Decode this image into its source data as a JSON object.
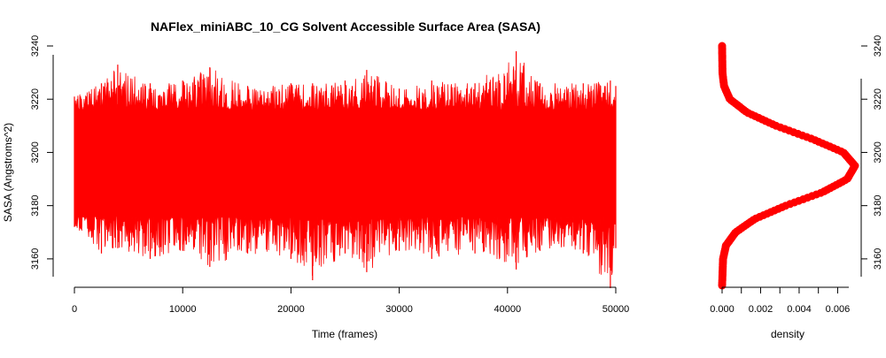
{
  "chart_data": [
    {
      "type": "line",
      "title": "NAFlex_miniABC_10_CG Solvent Accessible Surface Area (SASA)",
      "xlabel": "Time (frames)",
      "ylabel": "SASA (Angstroms^2)",
      "xlim": [
        0,
        50000
      ],
      "ylim": [
        3148,
        3240
      ],
      "x_ticks": [
        0,
        10000,
        20000,
        30000,
        40000,
        50000
      ],
      "x_tick_labels": [
        "0",
        "10000",
        "20000",
        "30000",
        "40000",
        "50000"
      ],
      "y_ticks": [
        3160,
        3180,
        3200,
        3220,
        3240
      ],
      "y_tick_labels": [
        "3160",
        "3180",
        "3200",
        "3220",
        "3240"
      ],
      "grid": false,
      "series": [
        {
          "color": "#ff0000",
          "x": [
            0,
            2500,
            4000,
            7000,
            10000,
            12500,
            16000,
            20000,
            22000,
            25000,
            27000,
            30000,
            33000,
            37000,
            40800,
            43000,
            47000,
            49500,
            50000
          ],
          "y_max": [
            3221,
            3226,
            3233,
            3226,
            3227,
            3232,
            3225,
            3226,
            3226,
            3227,
            3231,
            3224,
            3227,
            3226,
            3238,
            3226,
            3226,
            3227,
            3225
          ],
          "y_min": [
            3172,
            3162,
            3164,
            3160,
            3163,
            3157,
            3162,
            3160,
            3152,
            3162,
            3155,
            3163,
            3160,
            3162,
            3156,
            3163,
            3162,
            3149,
            3164
          ],
          "y_center": [
            3196,
            3196,
            3196,
            3196,
            3196,
            3196,
            3196,
            3196,
            3196,
            3196,
            3196,
            3196,
            3196,
            3196,
            3196,
            3196,
            3196,
            3196,
            3196
          ]
        }
      ]
    },
    {
      "type": "line",
      "xlabel": "density",
      "xlim": [
        0,
        0.0069
      ],
      "ylim": [
        3148,
        3240
      ],
      "x_ticks": [
        0,
        0.001,
        0.002,
        0.003,
        0.004,
        0.005,
        0.006
      ],
      "x_tick_labels": [
        "0.000",
        "",
        "0.002",
        "",
        "0.004",
        "",
        "0.006"
      ],
      "y_ticks": [
        3160,
        3180,
        3200,
        3220,
        3240
      ],
      "y_tick_labels": [
        "3160",
        "3180",
        "3200",
        "3220",
        "3240"
      ],
      "grid": false,
      "series": [
        {
          "color": "#ff0000",
          "y": [
            3150,
            3160,
            3165,
            3170,
            3175,
            3180,
            3185,
            3190,
            3195,
            3200,
            3205,
            3210,
            3215,
            3220,
            3225,
            3230,
            3240
          ],
          "density": [
            0.0,
            5e-05,
            0.0002,
            0.0007,
            0.0017,
            0.0033,
            0.0052,
            0.0065,
            0.0069,
            0.0063,
            0.0047,
            0.0028,
            0.0013,
            0.0004,
            0.0001,
            2e-05,
            0.0
          ]
        }
      ]
    }
  ]
}
